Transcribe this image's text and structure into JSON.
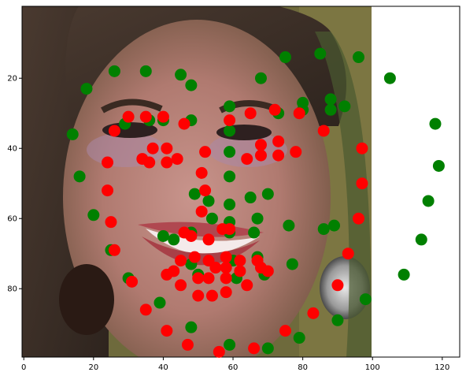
{
  "chart_data": {
    "type": "scatter",
    "title": "",
    "xlabel": "",
    "ylabel": "",
    "xlim": [
      -0.5,
      125
    ],
    "ylim": [
      99.5,
      -0.5
    ],
    "y_inverted": true,
    "grid": false,
    "legend": "none",
    "background_image": {
      "description": "photograph-face",
      "extent": [
        -0.5,
        99.5,
        99.5,
        -0.5
      ]
    },
    "xticks": [
      0,
      20,
      40,
      60,
      80,
      100,
      120
    ],
    "yticks": [
      20,
      40,
      60,
      80
    ],
    "xtick_labels": [
      "0",
      "20",
      "40",
      "60",
      "80",
      "100",
      "120"
    ],
    "ytick_labels": [
      "20",
      "40",
      "60",
      "80"
    ],
    "series": [
      {
        "color": "#008000",
        "points": [
          [
            26,
            18
          ],
          [
            35,
            18
          ],
          [
            45,
            19
          ],
          [
            18,
            23
          ],
          [
            48,
            22
          ],
          [
            68,
            20
          ],
          [
            75,
            14
          ],
          [
            85,
            13
          ],
          [
            96,
            14
          ],
          [
            105,
            20
          ],
          [
            36,
            32
          ],
          [
            40,
            32
          ],
          [
            48,
            32
          ],
          [
            29,
            33
          ],
          [
            59,
            28
          ],
          [
            59,
            35
          ],
          [
            80,
            27
          ],
          [
            80,
            29
          ],
          [
            88,
            26
          ],
          [
            88,
            29
          ],
          [
            92,
            28
          ],
          [
            73,
            30
          ],
          [
            14,
            36
          ],
          [
            118,
            33
          ],
          [
            59,
            41
          ],
          [
            59,
            48
          ],
          [
            16,
            48
          ],
          [
            119,
            45
          ],
          [
            49,
            53
          ],
          [
            53,
            55
          ],
          [
            59,
            56
          ],
          [
            65,
            54
          ],
          [
            70,
            53
          ],
          [
            116,
            55
          ],
          [
            20,
            59
          ],
          [
            54,
            60
          ],
          [
            59,
            61
          ],
          [
            67,
            60
          ],
          [
            76,
            62
          ],
          [
            86,
            63
          ],
          [
            89,
            62
          ],
          [
            114,
            66
          ],
          [
            40,
            65
          ],
          [
            43,
            66
          ],
          [
            48,
            64
          ],
          [
            59,
            64
          ],
          [
            66,
            64
          ],
          [
            25,
            69
          ],
          [
            60,
            72
          ],
          [
            67,
            71
          ],
          [
            77,
            73
          ],
          [
            30,
            77
          ],
          [
            48,
            73
          ],
          [
            50,
            76
          ],
          [
            61,
            77
          ],
          [
            69,
            76
          ],
          [
            109,
            76
          ],
          [
            39,
            84
          ],
          [
            48,
            91
          ],
          [
            98,
            83
          ],
          [
            90,
            89
          ],
          [
            59,
            96
          ],
          [
            70,
            97
          ],
          [
            79,
            94
          ]
        ]
      },
      {
        "color": "#ff0000",
        "points": [
          [
            30,
            31
          ],
          [
            35,
            31
          ],
          [
            40,
            31
          ],
          [
            59,
            32
          ],
          [
            46,
            33
          ],
          [
            65,
            30
          ],
          [
            72,
            29
          ],
          [
            79,
            30
          ],
          [
            86,
            35
          ],
          [
            26,
            35
          ],
          [
            37,
            40
          ],
          [
            41,
            40
          ],
          [
            34,
            43
          ],
          [
            36,
            44
          ],
          [
            44,
            43
          ],
          [
            41,
            44
          ],
          [
            52,
            41
          ],
          [
            64,
            43
          ],
          [
            68,
            39
          ],
          [
            73,
            38
          ],
          [
            68,
            42
          ],
          [
            73,
            42
          ],
          [
            78,
            41
          ],
          [
            97,
            40
          ],
          [
            24,
            44
          ],
          [
            51,
            47
          ],
          [
            97,
            50
          ],
          [
            24,
            52
          ],
          [
            52,
            52
          ],
          [
            25,
            61
          ],
          [
            51,
            58
          ],
          [
            96,
            60
          ],
          [
            57,
            63
          ],
          [
            59,
            63
          ],
          [
            26,
            69
          ],
          [
            46,
            64
          ],
          [
            48,
            65
          ],
          [
            53,
            66
          ],
          [
            93,
            70
          ],
          [
            49,
            71
          ],
          [
            53,
            72
          ],
          [
            58,
            71
          ],
          [
            62,
            72
          ],
          [
            67,
            72
          ],
          [
            45,
            72
          ],
          [
            55,
            74
          ],
          [
            58,
            74
          ],
          [
            62,
            75
          ],
          [
            68,
            74
          ],
          [
            70,
            75
          ],
          [
            31,
            78
          ],
          [
            41,
            76
          ],
          [
            43,
            75
          ],
          [
            50,
            77
          ],
          [
            53,
            77
          ],
          [
            58,
            77
          ],
          [
            45,
            79
          ],
          [
            64,
            79
          ],
          [
            50,
            82
          ],
          [
            54,
            82
          ],
          [
            58,
            81
          ],
          [
            90,
            79
          ],
          [
            35,
            86
          ],
          [
            83,
            87
          ],
          [
            41,
            92
          ],
          [
            47,
            96
          ],
          [
            66,
            97
          ],
          [
            56,
            98
          ],
          [
            75,
            92
          ]
        ]
      }
    ]
  }
}
